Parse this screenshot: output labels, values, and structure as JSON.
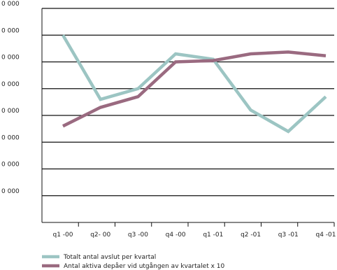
{
  "chart_data": {
    "type": "line",
    "categories": [
      "q1 -00",
      "q2- 00",
      "q3 -00",
      "q4 -00",
      "q1 -01",
      "q2 -01",
      "q3 -01",
      "q4 -01"
    ],
    "y_tick_labels": [
      "0 000",
      "0 000",
      "0 000",
      "0 000",
      "0 000",
      "0 000",
      "0 000",
      "0 000"
    ],
    "ylim": [
      0,
      8
    ],
    "grid": true,
    "legend_position": "bottom-left",
    "series": [
      {
        "name": "Totalt antal avslut per kvartal",
        "color": "#9cc5c3",
        "values": [
          7.0,
          4.6,
          5.0,
          6.3,
          6.1,
          4.2,
          3.4,
          4.7
        ]
      },
      {
        "name": "Antal aktiva depåer vid utgången av kvartalet x 10",
        "color": "#9a6a80",
        "values": [
          3.6,
          4.3,
          4.7,
          6.0,
          6.05,
          6.3,
          6.37,
          6.23
        ]
      }
    ]
  }
}
